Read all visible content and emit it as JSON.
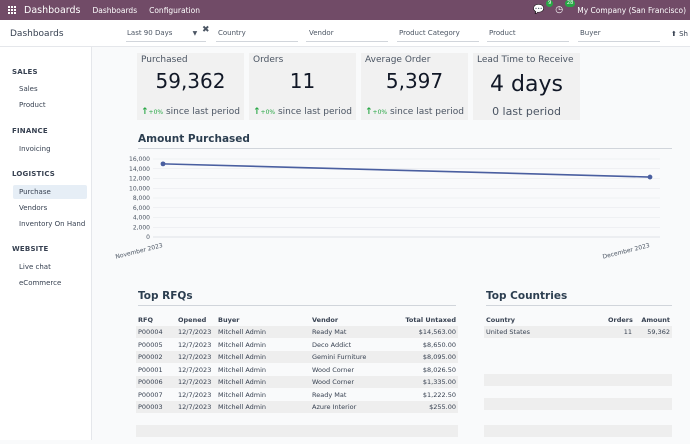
{
  "topbar": {
    "brand": "Dashboards",
    "menu": [
      "Dashboards",
      "Configuration"
    ],
    "chat_badge": "9",
    "activity_badge": "28",
    "company": "My Company (San Francisco)"
  },
  "controlbar": {
    "breadcrumb": "Dashboards",
    "date_filter": "Last 90 Days",
    "filters": [
      "Country",
      "Vendor",
      "Product Category",
      "Product",
      "Buyer"
    ],
    "share_label": "Sh"
  },
  "sidebar": {
    "sections": [
      {
        "title": "SALES",
        "items": [
          "Sales",
          "Product"
        ]
      },
      {
        "title": "FINANCE",
        "items": [
          "Invoicing"
        ]
      },
      {
        "title": "LOGISTICS",
        "items": [
          "Purchase",
          "Vendors",
          "Inventory On Hand"
        ]
      },
      {
        "title": "WEBSITE",
        "items": [
          "Live chat",
          "eCommerce"
        ]
      }
    ],
    "active_item": "Purchase"
  },
  "kpis": [
    {
      "title": "Purchased",
      "value": "59,362",
      "pct": "+0%",
      "since": "since last period"
    },
    {
      "title": "Orders",
      "value": "11",
      "pct": "+0%",
      "since": "since last period"
    },
    {
      "title": "Average Order",
      "value": "5,397",
      "pct": "+0%",
      "since": "since last period"
    },
    {
      "title": "Lead Time to Receive",
      "value": "4 days",
      "since_plain": "0 last period"
    }
  ],
  "chart_data": {
    "type": "line",
    "title": "Amount Purchased",
    "x": [
      "November 2023",
      "December 2023"
    ],
    "series": [
      {
        "values": [
          15000,
          12300
        ]
      }
    ],
    "ylim": [
      0,
      16000
    ],
    "yticks": [
      "16,000",
      "14,000",
      "12,000",
      "10,000",
      "8,000",
      "6,000",
      "4,000",
      "2,000",
      "0"
    ],
    "grid": true,
    "color": "#4a5fa0"
  },
  "top_rfqs": {
    "title": "Top RFQs",
    "columns": [
      "RFQ",
      "Opened",
      "Buyer",
      "Vendor",
      "Total Untaxed"
    ],
    "rows": [
      [
        "P00004",
        "12/7/2023",
        "Mitchell Admin",
        "Ready Mat",
        "$14,563.00"
      ],
      [
        "P00005",
        "12/7/2023",
        "Mitchell Admin",
        "Deco Addict",
        "$8,650.00"
      ],
      [
        "P00002",
        "12/7/2023",
        "Mitchell Admin",
        "Gemini Furniture",
        "$8,095.00"
      ],
      [
        "P00001",
        "12/7/2023",
        "Mitchell Admin",
        "Wood Corner",
        "$8,026.50"
      ],
      [
        "P00006",
        "12/7/2023",
        "Mitchell Admin",
        "Wood Corner",
        "$1,335.00"
      ],
      [
        "P00007",
        "12/7/2023",
        "Mitchell Admin",
        "Ready Mat",
        "$1,222.50"
      ],
      [
        "P00003",
        "12/7/2023",
        "Mitchell Admin",
        "Azure Interior",
        "$255.00"
      ]
    ]
  },
  "top_countries": {
    "title": "Top Countries",
    "columns": [
      "Country",
      "Orders",
      "Amount"
    ],
    "rows": [
      [
        "United States",
        "11",
        "59,362"
      ]
    ]
  }
}
